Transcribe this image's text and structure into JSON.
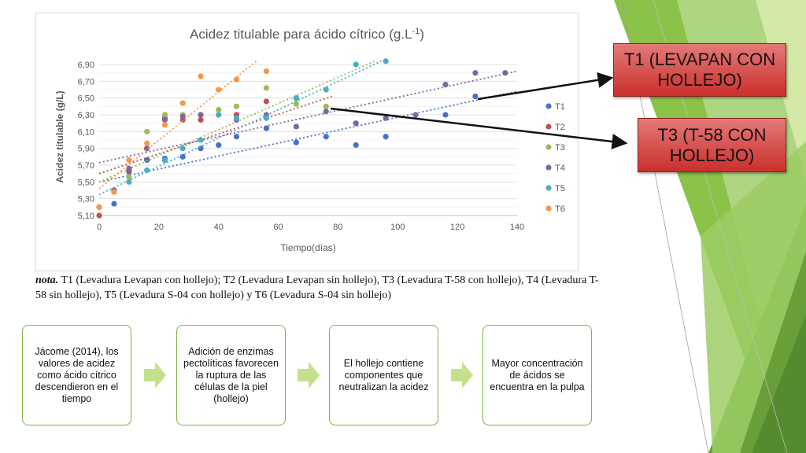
{
  "chart_data": {
    "type": "scatter",
    "title": "Acidez titulable para ácido cítrico (g.L",
    "title_superscript": "-1",
    "title_close": ")",
    "xlabel": "Tiempo(días)",
    "ylabel": "Acidez titulable (g/L)",
    "xlim": [
      0,
      140
    ],
    "ylim": [
      5.1,
      6.95
    ],
    "x_ticks": [
      0,
      20,
      40,
      60,
      80,
      100,
      120,
      140
    ],
    "y_ticks": [
      5.1,
      5.3,
      5.5,
      5.7,
      5.9,
      6.1,
      6.3,
      6.5,
      6.7,
      6.9
    ],
    "x_tick_labels": [
      "0",
      "20",
      "40",
      "60",
      "80",
      "100",
      "120",
      "140"
    ],
    "y_tick_labels": [
      "5,10",
      "5,30",
      "5,50",
      "5,70",
      "5,90",
      "6,10",
      "6,30",
      "6,50",
      "6,70",
      "6,90"
    ],
    "grid": "horizontal",
    "legend_position": "right",
    "trendlines": "linear, dotted",
    "series": [
      {
        "name": "T1",
        "color": "#4472c4",
        "points": [
          [
            0,
            5.2
          ],
          [
            5,
            5.24
          ],
          [
            10,
            5.62
          ],
          [
            16,
            5.76
          ],
          [
            22,
            5.78
          ],
          [
            28,
            5.8
          ],
          [
            34,
            5.9
          ],
          [
            40,
            5.94
          ],
          [
            46,
            6.04
          ],
          [
            56,
            6.14
          ],
          [
            66,
            5.97
          ],
          [
            76,
            6.04
          ],
          [
            86,
            5.94
          ],
          [
            96,
            6.04
          ],
          [
            116,
            6.3
          ],
          [
            126,
            6.52
          ]
        ],
        "trend": [
          [
            0,
            5.5
          ],
          [
            140,
            6.58
          ]
        ]
      },
      {
        "name": "T2",
        "color": "#c0504d",
        "points": [
          [
            0,
            5.1
          ],
          [
            5,
            5.4
          ],
          [
            10,
            5.64
          ],
          [
            16,
            5.9
          ],
          [
            22,
            6.26
          ],
          [
            28,
            6.24
          ],
          [
            34,
            6.24
          ],
          [
            40,
            6.3
          ],
          [
            46,
            6.3
          ],
          [
            56,
            6.46
          ],
          [
            66,
            6.5
          ]
        ],
        "trend": [
          [
            0,
            5.6
          ],
          [
            78,
            6.52
          ]
        ]
      },
      {
        "name": "T3",
        "color": "#9bbb59",
        "points": [
          [
            0,
            5.2
          ],
          [
            5,
            5.4
          ],
          [
            10,
            5.56
          ],
          [
            16,
            6.1
          ],
          [
            22,
            6.3
          ],
          [
            28,
            6.3
          ],
          [
            34,
            6.3
          ],
          [
            40,
            6.36
          ],
          [
            46,
            6.4
          ],
          [
            56,
            6.62
          ],
          [
            66,
            6.43
          ],
          [
            76,
            6.4
          ]
        ],
        "trend": [
          [
            0,
            5.5
          ],
          [
            93,
            6.95
          ]
        ]
      },
      {
        "name": "T4",
        "color": "#8064a2",
        "points": [
          [
            5,
            5.4
          ],
          [
            10,
            5.66
          ],
          [
            16,
            5.9
          ],
          [
            22,
            6.24
          ],
          [
            28,
            6.28
          ],
          [
            34,
            6.3
          ],
          [
            46,
            6.24
          ],
          [
            56,
            6.3
          ],
          [
            66,
            6.16
          ],
          [
            76,
            6.34
          ],
          [
            86,
            6.2
          ],
          [
            96,
            6.26
          ],
          [
            106,
            6.3
          ],
          [
            116,
            6.66
          ],
          [
            126,
            6.8
          ],
          [
            136,
            6.8
          ]
        ],
        "trend": [
          [
            0,
            5.73
          ],
          [
            140,
            6.82
          ]
        ]
      },
      {
        "name": "T5",
        "color": "#4bacc6",
        "points": [
          [
            0,
            5.2
          ],
          [
            5,
            5.38
          ],
          [
            10,
            5.5
          ],
          [
            16,
            5.64
          ],
          [
            22,
            5.76
          ],
          [
            28,
            5.9
          ],
          [
            34,
            6.0
          ],
          [
            40,
            6.3
          ],
          [
            46,
            6.26
          ],
          [
            56,
            6.26
          ],
          [
            66,
            6.5
          ],
          [
            76,
            6.6
          ],
          [
            86,
            6.9
          ],
          [
            96,
            6.94
          ]
        ],
        "trend": [
          [
            0,
            5.35
          ],
          [
            95,
            6.95
          ]
        ]
      },
      {
        "name": "T6",
        "color": "#f79646",
        "points": [
          [
            0,
            5.2
          ],
          [
            5,
            5.38
          ],
          [
            10,
            5.76
          ],
          [
            16,
            5.96
          ],
          [
            22,
            6.18
          ],
          [
            28,
            6.44
          ],
          [
            34,
            6.76
          ],
          [
            40,
            6.6
          ],
          [
            46,
            6.72
          ],
          [
            56,
            6.82
          ]
        ],
        "trend": [
          [
            0,
            5.42
          ],
          [
            53,
            6.95
          ]
        ]
      }
    ]
  },
  "annotations": [
    {
      "text": "T1 (LEVAPAN CON HOLLEJO)"
    },
    {
      "text": "T3 (T-58 CON HOLLEJO)"
    }
  ],
  "note": {
    "label": "nota.",
    "text": " T1 (Levadura Levapan con hollejo); T2 (Levadura Levapan sin hollejo), T3 (Levadura T-58 con hollejo), T4 (Levadura T-58 sin hollejo), T5 (Levadura S-04 con hollejo) y T6 (Levadura S-04 sin hollejo)"
  },
  "flow": [
    {
      "text": "Jácome (2014), los valores de acidez como ácido cítrico descendieron en el tiempo"
    },
    {
      "text": "Adición de enzimas pectolíticas favorecen la ruptura de las células de la piel (hollejo)"
    },
    {
      "text": "El hollejo contiene componentes que neutralizan la acidez"
    },
    {
      "text": "Mayor concentración de ácidos se encuentra en la pulpa"
    }
  ],
  "colors": {
    "accent_green": "#7cb342",
    "light_green": "#c5e08a",
    "annotation_red": "#c9302c"
  }
}
